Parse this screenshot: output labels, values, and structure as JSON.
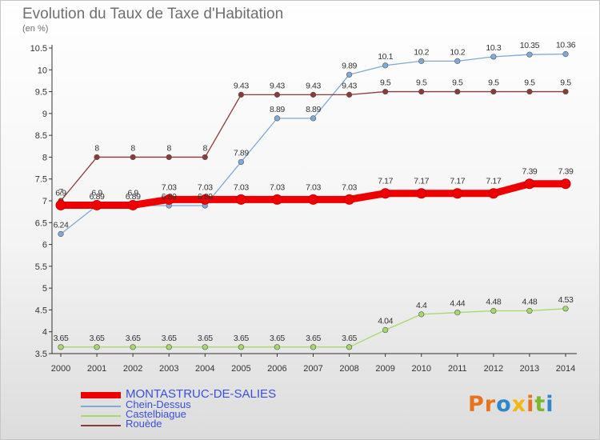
{
  "title": "Evolution du Taux de Taxe d'Habitation",
  "subtitle": "(en %)",
  "logo_text": "Proxiti",
  "logo_colors": [
    "#e8731e",
    "#e8731e",
    "#2f87c9",
    "#f2b714",
    "#e8731e",
    "#7ab82f",
    "#2f87c9"
  ],
  "chart_data": {
    "type": "line",
    "x": [
      "2000",
      "2001",
      "2002",
      "2003",
      "2004",
      "2005",
      "2006",
      "2007",
      "2008",
      "2009",
      "2010",
      "2011",
      "2012",
      "2013",
      "2014"
    ],
    "ylim": [
      3.5,
      10.5
    ],
    "yticks": [
      "3.5",
      "4",
      "4.5",
      "5",
      "5.5",
      "6",
      "6.5",
      "7",
      "7.5",
      "8",
      "8.5",
      "9",
      "9.5",
      "10",
      "10.5"
    ],
    "grid": false,
    "legend_position": "bottom-left",
    "series": [
      {
        "name": "MONTASTRUC-DE-SALIES",
        "color": "#ee0000",
        "values": [
          6.9,
          6.9,
          6.9,
          7.03,
          7.03,
          7.03,
          7.03,
          7.03,
          7.03,
          7.17,
          7.17,
          7.17,
          7.17,
          7.39,
          7.39
        ],
        "labels": [
          "6.9",
          "6.9",
          "6.9",
          "7.03",
          "7.03",
          "7.03",
          "7.03",
          "7.03",
          "7.03",
          "7.17",
          "7.17",
          "7.17",
          "7.17",
          "7.39",
          "7.39"
        ]
      },
      {
        "name": "Chein-Dessus",
        "color": "#7fa9d6",
        "values": [
          6.24,
          6.89,
          6.89,
          6.89,
          6.89,
          7.89,
          8.89,
          8.89,
          9.89,
          10.1,
          10.2,
          10.2,
          10.3,
          10.35,
          10.36
        ],
        "labels": [
          "6.24",
          "6.89",
          "6.89",
          "6.89",
          "6.89",
          "7.89",
          "8.89",
          "8.89",
          "9.89",
          "10.1",
          "10.2",
          "10.2",
          "10.3",
          "10.35",
          "10.36"
        ]
      },
      {
        "name": "Castelbiague",
        "color": "#a6d96a",
        "values": [
          3.65,
          3.65,
          3.65,
          3.65,
          3.65,
          3.65,
          3.65,
          3.65,
          3.65,
          4.04,
          4.4,
          4.44,
          4.48,
          4.48,
          4.53
        ],
        "labels": [
          "3.65",
          "3.65",
          "3.65",
          "3.65",
          "3.65",
          "3.65",
          "3.65",
          "3.65",
          "3.65",
          "4.04",
          "4.4",
          "4.44",
          "4.48",
          "4.48",
          "4.53"
        ]
      },
      {
        "name": "Rouède",
        "color": "#8b3a3a",
        "values": [
          7,
          8,
          8,
          8,
          8,
          9.43,
          9.43,
          9.43,
          9.43,
          9.5,
          9.5,
          9.5,
          9.5,
          9.5,
          9.5
        ],
        "labels": [
          "7",
          "8",
          "8",
          "8",
          "8",
          "9.43",
          "9.43",
          "9.43",
          "9.43",
          "9.5",
          "9.5",
          "9.5",
          "9.5",
          "9.5",
          "9.5"
        ]
      }
    ]
  }
}
